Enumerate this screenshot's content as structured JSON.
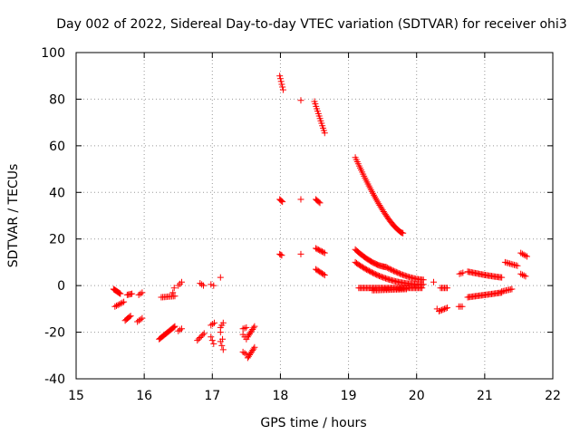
{
  "chart_data": {
    "type": "scatter",
    "title": "Day 002 of 2022, Sidereal Day-to-day VTEC variation (SDTVAR) for receiver ohi3",
    "xlabel": "GPS time / hours",
    "ylabel": "SDTVAR / TECUs",
    "xlim": [
      15,
      22
    ],
    "ylim": [
      -40,
      100
    ],
    "xticks": [
      15,
      16,
      17,
      18,
      19,
      20,
      21,
      22
    ],
    "yticks": [
      -40,
      -20,
      0,
      20,
      40,
      60,
      80,
      100
    ],
    "grid": true,
    "marker": "plus",
    "color": "#ff0000",
    "segments": [
      {
        "x0": 15.55,
        "x1": 15.65,
        "y0": -1.5,
        "y1": -3.5,
        "n": 10
      },
      {
        "x0": 15.57,
        "x1": 15.7,
        "y0": -9,
        "y1": -7,
        "n": 7
      },
      {
        "x0": 15.75,
        "x1": 15.82,
        "y0": -4,
        "y1": -3.5,
        "n": 5
      },
      {
        "x0": 15.72,
        "x1": 15.8,
        "y0": -15,
        "y1": -13,
        "n": 6
      },
      {
        "x0": 15.92,
        "x1": 15.97,
        "y0": -4,
        "y1": -3,
        "n": 3
      },
      {
        "x0": 15.9,
        "x1": 15.97,
        "y0": -15.5,
        "y1": -14,
        "n": 4
      },
      {
        "x0": 16.25,
        "x1": 16.45,
        "y0": -5,
        "y1": -4.5,
        "n": 10
      },
      {
        "x0": 16.42,
        "x1": 16.44,
        "y0": -3,
        "y1": -1,
        "n": 2
      },
      {
        "x0": 16.22,
        "x1": 16.45,
        "y0": -23,
        "y1": -17.5,
        "n": 18
      },
      {
        "x0": 16.5,
        "x1": 16.55,
        "y0": 0,
        "y1": 1.5,
        "n": 3
      },
      {
        "x0": 16.5,
        "x1": 16.55,
        "y0": -19.5,
        "y1": -18.5,
        "n": 3
      },
      {
        "x0": 16.82,
        "x1": 16.87,
        "y0": 1,
        "y1": 0,
        "n": 3
      },
      {
        "x0": 16.78,
        "x1": 16.88,
        "y0": -23.5,
        "y1": -20.5,
        "n": 6
      },
      {
        "x0": 16.98,
        "x1": 17.02,
        "y0": 0.5,
        "y1": 0,
        "n": 2
      },
      {
        "x0": 16.98,
        "x1": 17.03,
        "y0": -17,
        "y1": -16,
        "n": 3
      },
      {
        "x0": 16.98,
        "x1": 17.02,
        "y0": -22,
        "y1": -25,
        "n": 3
      },
      {
        "x0": 17.12,
        "x1": 17.12,
        "y0": 3.5,
        "y1": 3.5,
        "n": 1
      },
      {
        "x0": 17.12,
        "x1": 17.16,
        "y0": -18,
        "y1": -16,
        "n": 3
      },
      {
        "x0": 17.12,
        "x1": 17.15,
        "y0": -20,
        "y1": -23,
        "n": 2
      },
      {
        "x0": 17.12,
        "x1": 17.16,
        "y0": -24,
        "y1": -27.5,
        "n": 3
      },
      {
        "x0": 17.45,
        "x1": 17.5,
        "y0": -18.5,
        "y1": -18,
        "n": 3
      },
      {
        "x0": 17.45,
        "x1": 17.5,
        "y0": -21,
        "y1": -23,
        "n": 3
      },
      {
        "x0": 17.52,
        "x1": 17.62,
        "y0": -22,
        "y1": -17.5,
        "n": 8
      },
      {
        "x0": 17.45,
        "x1": 17.5,
        "y0": -28.5,
        "y1": -29.5,
        "n": 3
      },
      {
        "x0": 17.52,
        "x1": 17.62,
        "y0": -31,
        "y1": -26.5,
        "n": 8
      },
      {
        "x0": 17.99,
        "x1": 18.04,
        "y0": 90,
        "y1": 84,
        "n": 6
      },
      {
        "x0": 17.99,
        "x1": 18.03,
        "y0": 37,
        "y1": 36,
        "n": 4
      },
      {
        "x0": 17.99,
        "x1": 18.02,
        "y0": 13.5,
        "y1": 13,
        "n": 3
      },
      {
        "x0": 18.3,
        "x1": 18.3,
        "y0": 79.5,
        "y1": 79.5,
        "n": 1
      },
      {
        "x0": 18.3,
        "x1": 18.3,
        "y0": 37,
        "y1": 37,
        "n": 1
      },
      {
        "x0": 18.3,
        "x1": 18.3,
        "y0": 13.5,
        "y1": 13.5,
        "n": 1
      },
      {
        "x0": 18.5,
        "x1": 18.65,
        "y0": 79,
        "y1": 65.5,
        "n": 14
      },
      {
        "x0": 18.52,
        "x1": 18.58,
        "y0": 37,
        "y1": 35.5,
        "n": 5
      },
      {
        "x0": 18.52,
        "x1": 18.65,
        "y0": 16,
        "y1": 14,
        "n": 8
      },
      {
        "x0": 18.52,
        "x1": 18.65,
        "y0": 7,
        "y1": 4.5,
        "n": 8
      }
    ],
    "curves": [
      {
        "x0": 19.1,
        "x1": 19.8,
        "y0": 55,
        "y1": 22.5,
        "k": 1.4,
        "n": 50
      },
      {
        "x0": 19.1,
        "x1": 19.55,
        "y0": 15.5,
        "y1": 8,
        "k": 1.6,
        "n": 30
      },
      {
        "x0": 19.55,
        "x1": 20.1,
        "y0": 8,
        "y1": 2.5,
        "k": 1.6,
        "n": 30
      },
      {
        "x0": 19.1,
        "x1": 20.1,
        "y0": 10,
        "y1": 0.5,
        "k": 2.2,
        "n": 55
      },
      {
        "x0": 19.15,
        "x1": 20.08,
        "y0": -1,
        "y1": -1,
        "k": 1,
        "n": 50
      },
      {
        "x0": 19.35,
        "x1": 19.85,
        "y0": -2,
        "y1": -1.5,
        "k": 1,
        "n": 25
      },
      {
        "x0": 20.25,
        "x1": 20.3,
        "y0": 1.5,
        "y1": -10,
        "k": 1,
        "n": 2
      },
      {
        "x0": 20.35,
        "x1": 20.45,
        "y0": -1,
        "y1": -1,
        "k": 1,
        "n": 6
      },
      {
        "x0": 20.33,
        "x1": 20.45,
        "y0": -11,
        "y1": -9.5,
        "k": 1,
        "n": 7
      },
      {
        "x0": 20.63,
        "x1": 20.68,
        "y0": 5,
        "y1": 5.5,
        "k": 1,
        "n": 3
      },
      {
        "x0": 20.62,
        "x1": 20.67,
        "y0": -9,
        "y1": -9,
        "k": 1,
        "n": 3
      },
      {
        "x0": 20.75,
        "x1": 21.25,
        "y0": 6,
        "y1": 3.5,
        "k": 1.2,
        "n": 28
      },
      {
        "x0": 20.75,
        "x1": 21.25,
        "y0": -5,
        "y1": -3,
        "k": 1,
        "n": 28
      },
      {
        "x0": 21.25,
        "x1": 21.4,
        "y0": -2.5,
        "y1": -1.5,
        "k": 1,
        "n": 8
      },
      {
        "x0": 21.3,
        "x1": 21.48,
        "y0": 10,
        "y1": 8.5,
        "k": 1,
        "n": 9
      },
      {
        "x0": 21.53,
        "x1": 21.62,
        "y0": 14,
        "y1": 12.5,
        "k": 1,
        "n": 5
      },
      {
        "x0": 21.53,
        "x1": 21.6,
        "y0": 5,
        "y1": 4,
        "k": 1,
        "n": 4
      }
    ]
  }
}
